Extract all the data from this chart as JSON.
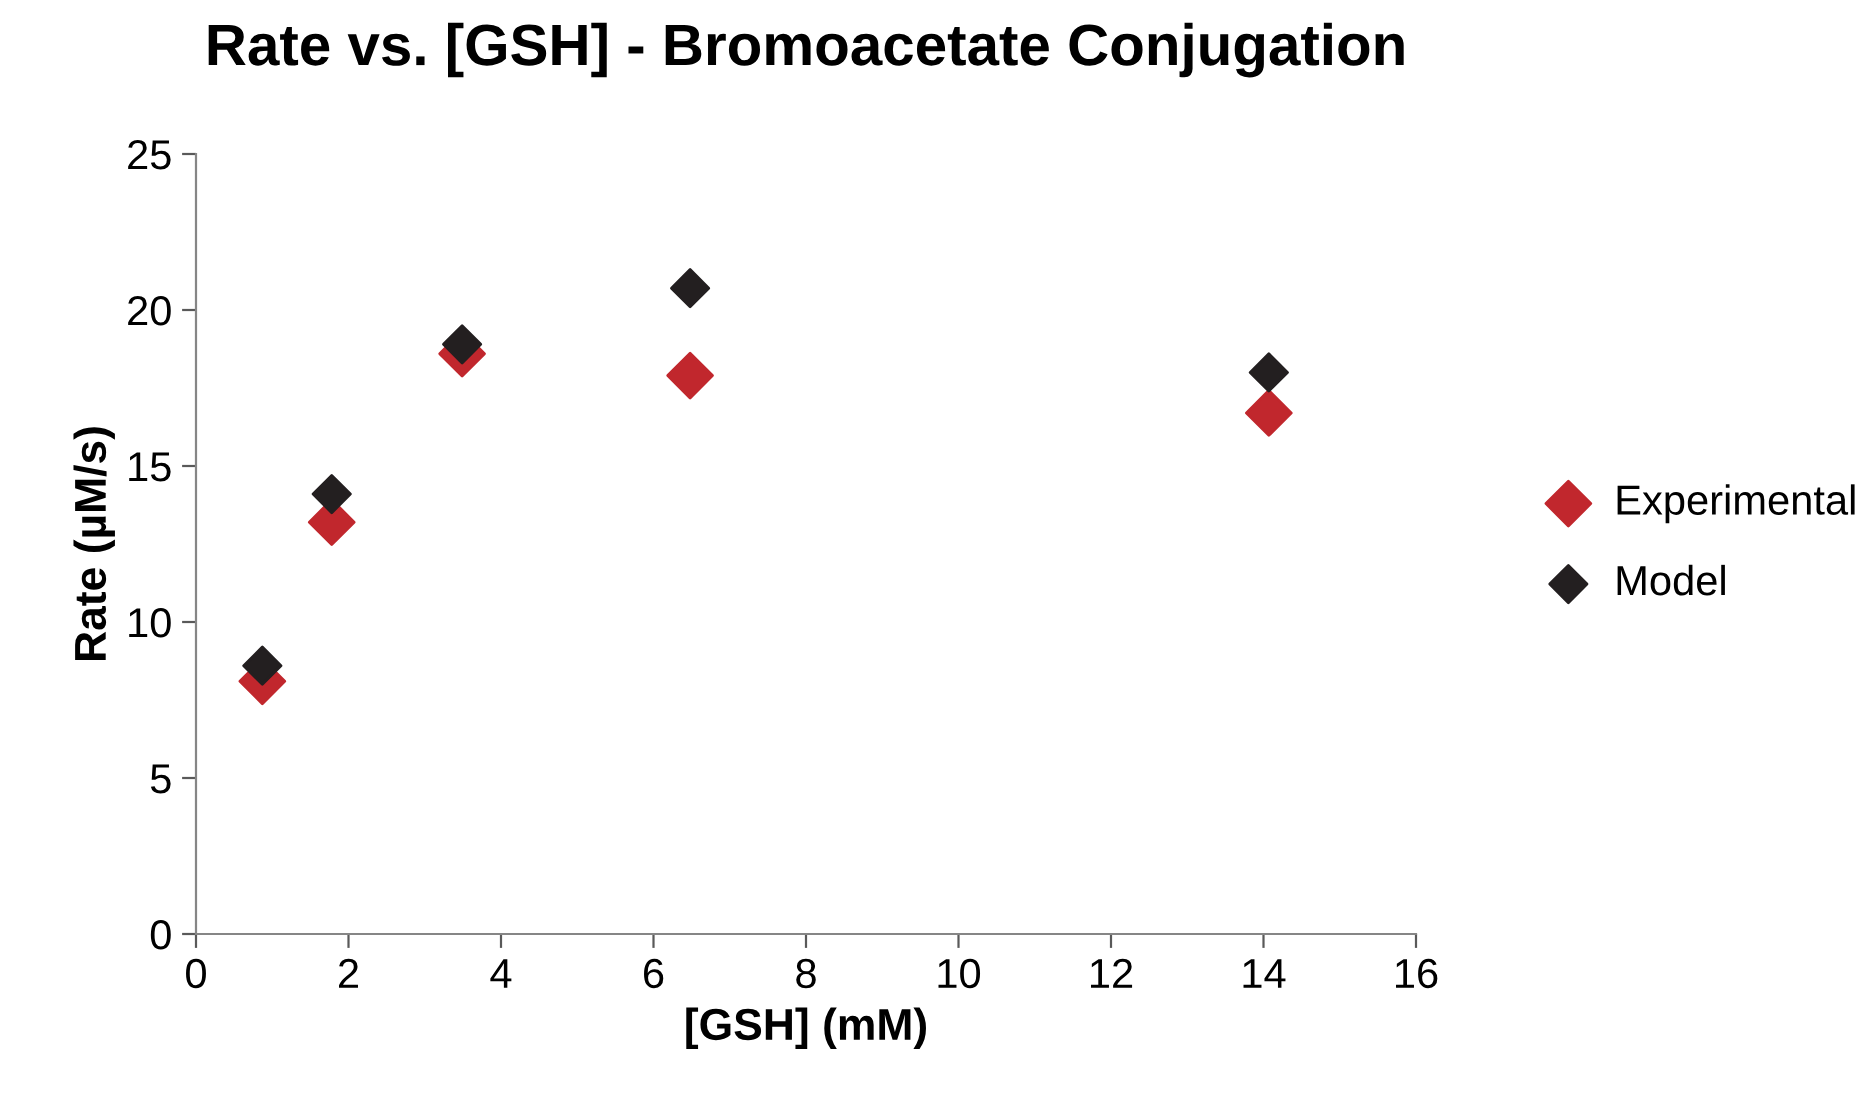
{
  "chart_data": {
    "type": "scatter",
    "title": "Rate vs. [GSH] - Bromoacetate Conjugation",
    "xlabel": "[GSH] (mM)",
    "ylabel": "Rate (µM/s)",
    "x": [
      0.87,
      1.78,
      3.49,
      6.48,
      14.07
    ],
    "series": [
      {
        "name": "Experimental",
        "color": "#c1272d",
        "values": [
          8.1,
          13.2,
          18.6,
          17.9,
          16.7
        ]
      },
      {
        "name": "Model",
        "color": "#231f20",
        "values": [
          8.6,
          14.1,
          18.9,
          20.7,
          18.0
        ]
      }
    ],
    "xlim": [
      0,
      16
    ],
    "xticks": [
      0,
      2,
      4,
      6,
      8,
      10,
      12,
      14,
      16
    ],
    "ylim": [
      0,
      25
    ],
    "yticks": [
      0,
      5,
      10,
      15,
      20,
      25
    ],
    "marker": "diamond",
    "legend": "right",
    "grid": false
  }
}
